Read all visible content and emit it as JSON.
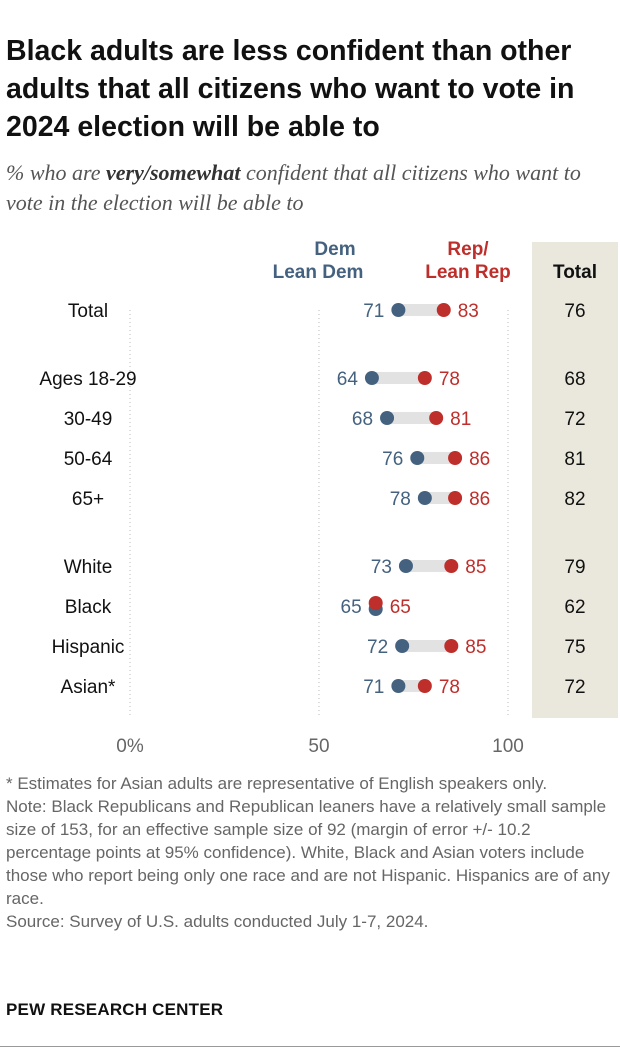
{
  "title": "Black adults are less confident than other adults that all citizens who want to vote in 2024 election will be able to",
  "subtitle": {
    "pre": "% who are ",
    "emphasis": "very/somewhat",
    "post": " confident that all citizens who want to vote in the election will be able to"
  },
  "colors": {
    "dem": "#44627F",
    "rep": "#BE2E2A",
    "bar": "#E2E2E2",
    "total_bg": "#EAE8DD",
    "tick": "#666666"
  },
  "chart_data": {
    "type": "dot",
    "legend": {
      "dem_line1": "Dem",
      "dem_line2": "Lean Dem",
      "rep_line1": "Rep/",
      "rep_line2": "Lean Rep"
    },
    "total_label": "Total",
    "xlim": [
      0,
      100
    ],
    "xticks": [
      {
        "value": 0,
        "label": "0%"
      },
      {
        "value": 50,
        "label": "50"
      },
      {
        "value": 100,
        "label": "100"
      }
    ],
    "rows": [
      {
        "label": "Total",
        "dem": 71,
        "rep": 83,
        "total": 76,
        "group": 0
      },
      {
        "label": "Ages 18-29",
        "dem": 64,
        "rep": 78,
        "total": 68,
        "group": 1
      },
      {
        "label": "30-49",
        "dem": 68,
        "rep": 81,
        "total": 72,
        "group": 1
      },
      {
        "label": "50-64",
        "dem": 76,
        "rep": 86,
        "total": 81,
        "group": 1
      },
      {
        "label": "65+",
        "dem": 78,
        "rep": 86,
        "total": 82,
        "group": 1
      },
      {
        "label": "White",
        "dem": 73,
        "rep": 85,
        "total": 79,
        "group": 2
      },
      {
        "label": "Black",
        "dem": 65,
        "rep": 65,
        "total": 62,
        "group": 2
      },
      {
        "label": "Hispanic",
        "dem": 72,
        "rep": 85,
        "total": 75,
        "group": 2
      },
      {
        "label": "Asian*",
        "dem": 71,
        "rep": 78,
        "total": 72,
        "group": 2
      }
    ]
  },
  "footnote": "* Estimates for Asian adults are representative of English speakers only.",
  "note": "Note:  Black Republicans and Republican leaners have a relatively small sample size of 153, for an effective sample size of 92 (margin of error +/- 10.2 percentage points at 95% confidence). White, Black and Asian voters include those who report being only one race and are not Hispanic. Hispanics are of any race.",
  "source": "Source: Survey of U.S. adults conducted July 1-7, 2024.",
  "brand": "PEW RESEARCH CENTER"
}
